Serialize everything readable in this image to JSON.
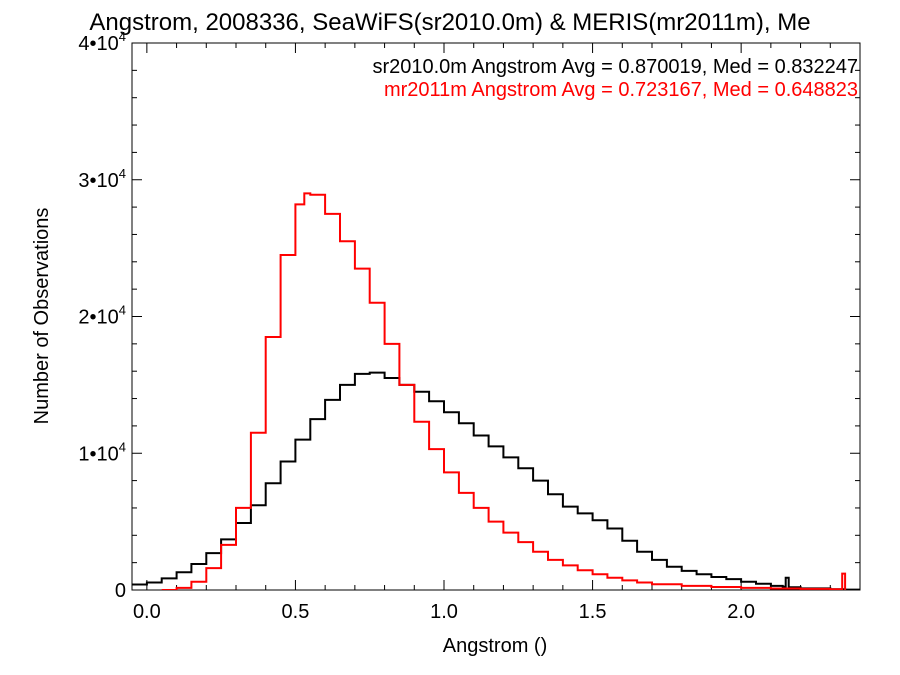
{
  "chart_data": {
    "type": "line",
    "title": "Angstrom, 2008336, SeaWiFS(sr2010.0m) & MERIS(mr2011m), Me",
    "xlabel": "Angstrom ()",
    "ylabel": "Number of Observations",
    "xlim": [
      -0.05,
      2.4
    ],
    "ylim": [
      0,
      40000
    ],
    "grid": false,
    "x_ticks": [
      "0.0",
      "0.5",
      "1.0",
      "1.5",
      "2.0"
    ],
    "y_ticks": [
      {
        "mantissa": "0",
        "exponent": ""
      },
      {
        "mantissa": "1•10",
        "exponent": "4"
      },
      {
        "mantissa": "2•10",
        "exponent": "4"
      },
      {
        "mantissa": "3•10",
        "exponent": "4"
      },
      {
        "mantissa": "4•10",
        "exponent": "4"
      }
    ],
    "annotations": [
      {
        "text": "sr2010.0m Angstrom Avg = 0.870019, Med = 0.832247",
        "color": "#000000"
      },
      {
        "text": "mr2011m Angstrom Avg = 0.723167, Med = 0.648823",
        "color": "#ff0000"
      }
    ],
    "series": [
      {
        "color": "#000000",
        "step": true,
        "points": [
          [
            -0.05,
            400
          ],
          [
            0.0,
            550
          ],
          [
            0.05,
            850
          ],
          [
            0.1,
            1300
          ],
          [
            0.15,
            1900
          ],
          [
            0.2,
            2700
          ],
          [
            0.25,
            3700
          ],
          [
            0.3,
            4900
          ],
          [
            0.35,
            6200
          ],
          [
            0.4,
            7800
          ],
          [
            0.45,
            9400
          ],
          [
            0.5,
            11000
          ],
          [
            0.55,
            12500
          ],
          [
            0.6,
            13900
          ],
          [
            0.65,
            15000
          ],
          [
            0.7,
            15800
          ],
          [
            0.75,
            15900
          ],
          [
            0.8,
            15500
          ],
          [
            0.85,
            15000
          ],
          [
            0.9,
            14500
          ],
          [
            0.95,
            13800
          ],
          [
            1.0,
            13000
          ],
          [
            1.05,
            12200
          ],
          [
            1.1,
            11300
          ],
          [
            1.15,
            10500
          ],
          [
            1.2,
            9700
          ],
          [
            1.25,
            8900
          ],
          [
            1.3,
            8000
          ],
          [
            1.35,
            7000
          ],
          [
            1.4,
            6100
          ],
          [
            1.45,
            5600
          ],
          [
            1.5,
            5100
          ],
          [
            1.55,
            4500
          ],
          [
            1.6,
            3600
          ],
          [
            1.65,
            2800
          ],
          [
            1.7,
            2200
          ],
          [
            1.75,
            1700
          ],
          [
            1.8,
            1400
          ],
          [
            1.85,
            1150
          ],
          [
            1.9,
            950
          ],
          [
            1.95,
            800
          ],
          [
            2.0,
            600
          ],
          [
            2.05,
            450
          ],
          [
            2.1,
            300
          ],
          [
            2.14,
            250
          ],
          [
            2.15,
            900
          ],
          [
            2.16,
            200
          ],
          [
            2.2,
            120
          ],
          [
            2.3,
            60
          ],
          [
            2.35,
            30
          ],
          [
            2.4,
            20
          ]
        ]
      },
      {
        "color": "#ff0000",
        "step": true,
        "points": [
          [
            0.05,
            0
          ],
          [
            0.1,
            150
          ],
          [
            0.15,
            600
          ],
          [
            0.2,
            1600
          ],
          [
            0.25,
            3300
          ],
          [
            0.3,
            6000
          ],
          [
            0.35,
            11500
          ],
          [
            0.4,
            18500
          ],
          [
            0.45,
            24500
          ],
          [
            0.5,
            28200
          ],
          [
            0.53,
            29000
          ],
          [
            0.55,
            28900
          ],
          [
            0.6,
            27500
          ],
          [
            0.65,
            25500
          ],
          [
            0.7,
            23500
          ],
          [
            0.75,
            21000
          ],
          [
            0.8,
            18000
          ],
          [
            0.85,
            15000
          ],
          [
            0.9,
            12300
          ],
          [
            0.95,
            10300
          ],
          [
            1.0,
            8600
          ],
          [
            1.05,
            7100
          ],
          [
            1.1,
            6000
          ],
          [
            1.15,
            5000
          ],
          [
            1.2,
            4200
          ],
          [
            1.25,
            3500
          ],
          [
            1.3,
            2800
          ],
          [
            1.35,
            2200
          ],
          [
            1.4,
            1800
          ],
          [
            1.45,
            1450
          ],
          [
            1.5,
            1150
          ],
          [
            1.55,
            900
          ],
          [
            1.6,
            700
          ],
          [
            1.65,
            550
          ],
          [
            1.7,
            420
          ],
          [
            1.8,
            300
          ],
          [
            1.9,
            220
          ],
          [
            2.0,
            150
          ],
          [
            2.1,
            110
          ],
          [
            2.2,
            80
          ],
          [
            2.3,
            60
          ],
          [
            2.33,
            60
          ],
          [
            2.34,
            1200
          ],
          [
            2.35,
            0
          ]
        ]
      }
    ]
  }
}
